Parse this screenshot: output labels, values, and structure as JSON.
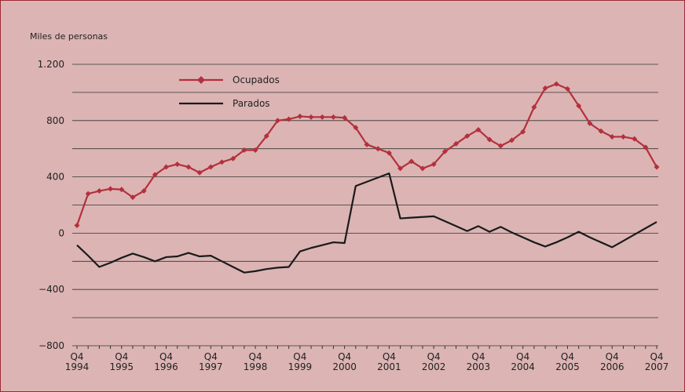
{
  "chart_data": {
    "type": "line",
    "y_label": "Miles de personas",
    "categories": [
      "Q4 1994",
      null,
      null,
      null,
      "Q4 1995",
      null,
      null,
      null,
      "Q4 1996",
      null,
      null,
      null,
      "Q4 1997",
      null,
      null,
      null,
      "Q4 1998",
      null,
      null,
      null,
      "Q4 1999",
      null,
      null,
      null,
      "Q4 2000",
      null,
      null,
      null,
      "Q4 2001",
      null,
      null,
      null,
      "Q4 2002",
      null,
      null,
      null,
      "Q4 2003",
      null,
      null,
      null,
      "Q4 2004",
      null,
      null,
      null,
      "Q4 2005",
      null,
      null,
      null,
      "Q4 2006",
      null,
      null,
      null,
      "Q4 2007"
    ],
    "series": [
      {
        "name": "Ocupados",
        "color": "#b3303c",
        "marker": "diamond",
        "values": [
          55,
          280,
          300,
          315,
          310,
          255,
          300,
          415,
          470,
          490,
          470,
          430,
          470,
          505,
          530,
          590,
          590,
          690,
          800,
          810,
          830,
          825,
          825,
          825,
          820,
          750,
          630,
          600,
          570,
          460,
          510,
          460,
          490,
          580,
          635,
          690,
          735,
          665,
          620,
          660,
          720,
          895,
          1030,
          1060,
          1025,
          905,
          780,
          725,
          685,
          685,
          670,
          610,
          470
        ]
      },
      {
        "name": "Parados",
        "color": "#1a1a1a",
        "values": [
          -85,
          -160,
          -240,
          -210,
          -175,
          -145,
          -170,
          -200,
          -170,
          -165,
          -140,
          -165,
          -160,
          -200,
          -240,
          -280,
          -270,
          -255,
          -245,
          -240,
          -130,
          -105,
          -85,
          -65,
          -70,
          335,
          365,
          395,
          425,
          105,
          110,
          115,
          120,
          85,
          50,
          15,
          50,
          10,
          45,
          5,
          -30,
          -65,
          -95,
          -65,
          -30,
          10,
          -30,
          -65,
          -100,
          -55,
          -10,
          35,
          80
        ]
      }
    ],
    "ylim": [
      -800,
      1200
    ],
    "yticks": [
      {
        "value": -800,
        "label": "−800"
      },
      {
        "value": -400,
        "label": "−400"
      },
      0,
      400,
      800,
      {
        "value": 1200,
        "label": "1.200"
      }
    ],
    "yticks_minor": [
      -600,
      -200,
      200,
      600,
      1000
    ],
    "grid": true
  }
}
